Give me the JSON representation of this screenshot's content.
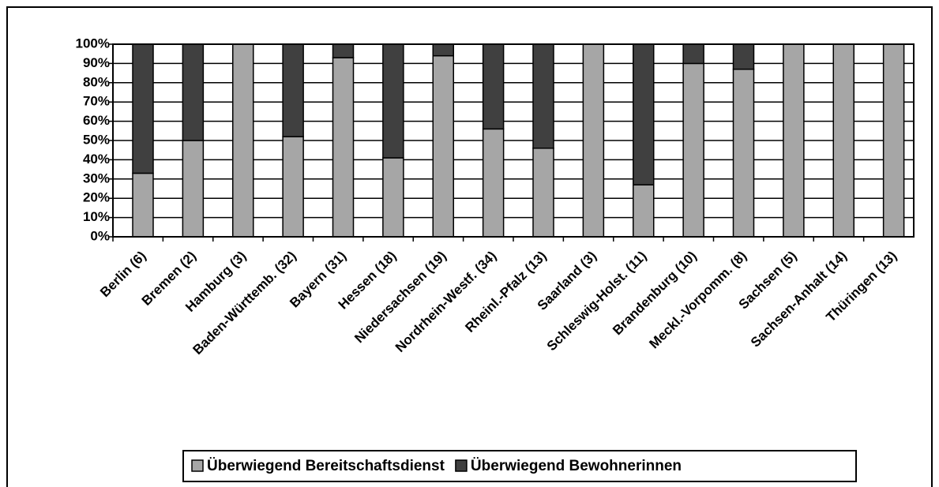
{
  "chart_data": {
    "type": "stacked_bar",
    "categories": [
      "Berlin (6)",
      "Bremen (2)",
      "Hamburg (3)",
      "Baden-Württemb. (32)",
      "Bayern (31)",
      "Hessen (18)",
      "Niedersachsen (19)",
      "Nordrhein-Westf. (34)",
      "Rheinl.-Pfalz (13)",
      "Saarland (3)",
      "Schleswig-Holst. (11)",
      "Brandenburg (10)",
      "Meckl.-Vorpomm. (8)",
      "Sachsen (5)",
      "Sachsen-Anhalt (14)",
      "Thüringen (13)"
    ],
    "series": [
      {
        "name": "Überwiegend Bereitschaftsdienst",
        "color": "#a6a6a6",
        "values": [
          33,
          50,
          100,
          52,
          93,
          41,
          94,
          56,
          46,
          100,
          27,
          90,
          87,
          100,
          100,
          100
        ]
      },
      {
        "name": "Überwiegend Bewohnerinnen",
        "color": "#404040",
        "values": [
          67,
          50,
          0,
          48,
          7,
          59,
          6,
          44,
          54,
          0,
          73,
          10,
          13,
          0,
          0,
          0
        ]
      }
    ],
    "ylim": [
      0,
      100
    ],
    "yticks": [
      {
        "value": 0,
        "label": "0%"
      },
      {
        "value": 10,
        "label": "10%"
      },
      {
        "value": 20,
        "label": "20%"
      },
      {
        "value": 30,
        "label": "30%"
      },
      {
        "value": 40,
        "label": "40%"
      },
      {
        "value": 50,
        "label": "50%"
      },
      {
        "value": 60,
        "label": "60%"
      },
      {
        "value": 70,
        "label": "70%"
      },
      {
        "value": 80,
        "label": "80%"
      },
      {
        "value": 90,
        "label": "90%"
      },
      {
        "value": 100,
        "label": "100%"
      }
    ],
    "grid": true,
    "legend": "bottom"
  }
}
